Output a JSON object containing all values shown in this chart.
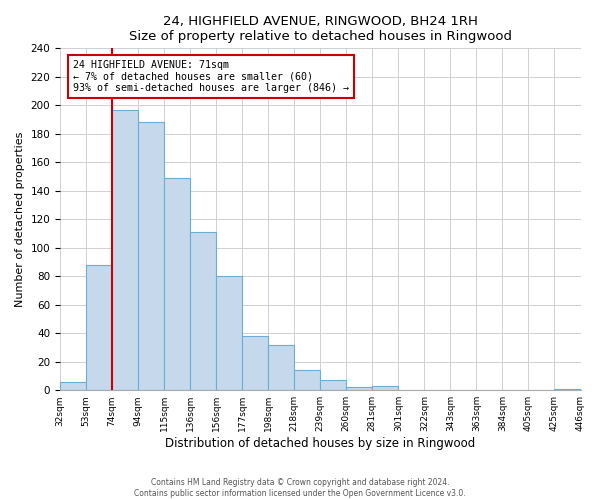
{
  "title": "24, HIGHFIELD AVENUE, RINGWOOD, BH24 1RH",
  "subtitle": "Size of property relative to detached houses in Ringwood",
  "xlabel": "Distribution of detached houses by size in Ringwood",
  "ylabel": "Number of detached properties",
  "bin_labels": [
    "32sqm",
    "53sqm",
    "74sqm",
    "94sqm",
    "115sqm",
    "136sqm",
    "156sqm",
    "177sqm",
    "198sqm",
    "218sqm",
    "239sqm",
    "260sqm",
    "281sqm",
    "301sqm",
    "322sqm",
    "343sqm",
    "363sqm",
    "384sqm",
    "405sqm",
    "425sqm",
    "446sqm"
  ],
  "heights": [
    6,
    88,
    197,
    188,
    149,
    111,
    80,
    38,
    32,
    14,
    7,
    2,
    3,
    0,
    0,
    0,
    0,
    0,
    0,
    1
  ],
  "bar_color": "#c6d9ec",
  "bar_edge_color": "#6aaed6",
  "vline_color": "#cc0000",
  "vline_bin": 2,
  "annotation_title": "24 HIGHFIELD AVENUE: 71sqm",
  "annotation_line1": "← 7% of detached houses are smaller (60)",
  "annotation_line2": "93% of semi-detached houses are larger (846) →",
  "annotation_box_color": "#ffffff",
  "annotation_box_edge": "#cc0000",
  "ylim": [
    0,
    240
  ],
  "yticks": [
    0,
    20,
    40,
    60,
    80,
    100,
    120,
    140,
    160,
    180,
    200,
    220,
    240
  ],
  "grid_color": "#d0d0d0",
  "footnote1": "Contains HM Land Registry data © Crown copyright and database right 2024.",
  "footnote2": "Contains public sector information licensed under the Open Government Licence v3.0.",
  "bg_color": "#ffffff"
}
